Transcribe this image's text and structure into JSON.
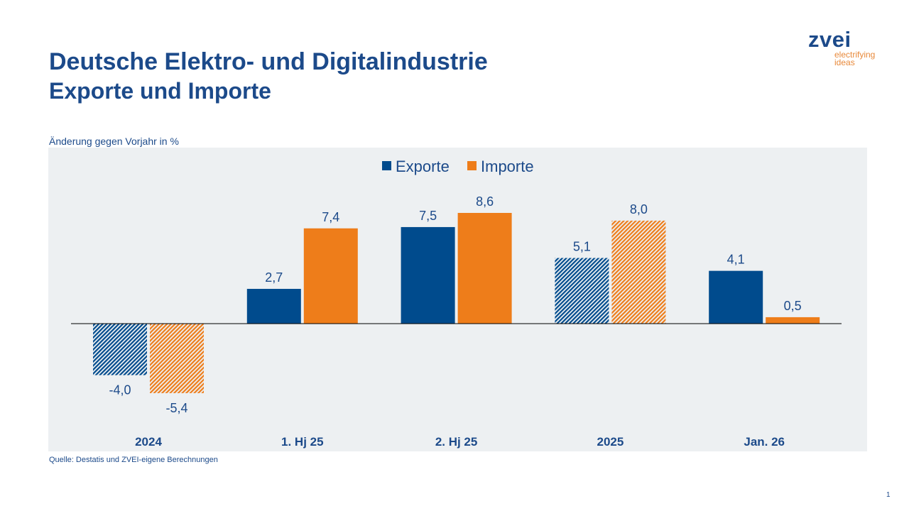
{
  "header": {
    "title": "Deutsche Elektro- und Digitalindustrie",
    "subtitle": "Exporte und Importe"
  },
  "logo": {
    "word": "zvei",
    "tagline": "electrifying ideas"
  },
  "footer": {
    "source": "Quelle: Destatis und ZVEI-eigene Berechnungen",
    "page": "1"
  },
  "colors": {
    "exporte": "#004b8d",
    "importe": "#ee7d1a",
    "plot_bg": "#edf0f2"
  },
  "chart_data": {
    "type": "bar",
    "ylabel": "Änderung gegen Vorjahr in %",
    "legend_position": "top-center",
    "grid": false,
    "categories": [
      "2024",
      "1. Hj 25",
      "2. Hj 25",
      "2025",
      "Jan. 26"
    ],
    "hatched_categories": [
      "2024",
      "2025"
    ],
    "series": [
      {
        "name": "Exporte",
        "values": [
          -4.0,
          2.7,
          7.5,
          5.1,
          4.1
        ],
        "labels": [
          "-4,0",
          "2,7",
          "7,5",
          "5,1",
          "4,1"
        ]
      },
      {
        "name": "Importe",
        "values": [
          -5.4,
          7.4,
          8.6,
          8.0,
          0.5
        ],
        "labels": [
          "-5,4",
          "7,4",
          "8,6",
          "8,0",
          "0,5"
        ]
      }
    ]
  }
}
